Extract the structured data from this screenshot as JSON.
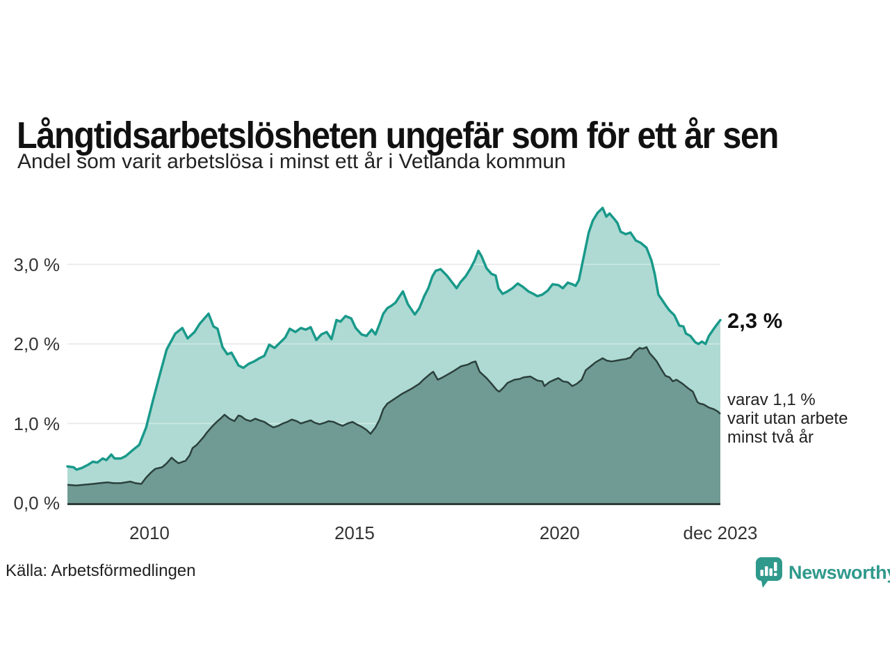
{
  "header": {
    "title": "Långtidsarbetslösheten ungefär som för ett år sen",
    "subtitle": "Andel som varit arbetslösa i minst ett år i Vetlanda kommun"
  },
  "chart_data": {
    "type": "area",
    "title": "Långtidsarbetslösheten ungefär som för ett år sen",
    "subtitle": "Andel som varit arbetslösa i minst ett år i Vetlanda kommun",
    "grid": true,
    "legend_position": "none",
    "x_axis": {
      "unit": "year",
      "range": [
        2008.0,
        2023.92
      ],
      "ticks": [
        {
          "label": "2010",
          "year": 2010
        },
        {
          "label": "2015",
          "year": 2015
        },
        {
          "label": "2020",
          "year": 2020
        },
        {
          "label": "dec 2023",
          "year": 2023.92
        }
      ]
    },
    "y_axis": {
      "unit": "%",
      "range": [
        0,
        3.8
      ],
      "ticks": [
        {
          "label": "0,0 %",
          "value": 0
        },
        {
          "label": "1,0 %",
          "value": 1
        },
        {
          "label": "2,0 %",
          "value": 2
        },
        {
          "label": "3,0 %",
          "value": 3
        }
      ]
    },
    "series": [
      {
        "name": "Andel som varit arbetslösa i minst ett år",
        "line_color": "#19998a",
        "fill_color": "#aedad3",
        "line_width": 3.5,
        "latest_value": 2.3,
        "points": [
          [
            2008.0,
            0.46
          ],
          [
            2008.15,
            0.45
          ],
          [
            2008.22,
            0.42
          ],
          [
            2008.35,
            0.44
          ],
          [
            2008.5,
            0.48
          ],
          [
            2008.62,
            0.52
          ],
          [
            2008.73,
            0.51
          ],
          [
            2008.86,
            0.56
          ],
          [
            2008.95,
            0.54
          ],
          [
            2009.07,
            0.61
          ],
          [
            2009.15,
            0.56
          ],
          [
            2009.3,
            0.56
          ],
          [
            2009.42,
            0.59
          ],
          [
            2009.58,
            0.66
          ],
          [
            2009.75,
            0.73
          ],
          [
            2009.92,
            0.95
          ],
          [
            2010.08,
            1.28
          ],
          [
            2010.25,
            1.61
          ],
          [
            2010.42,
            1.93
          ],
          [
            2010.63,
            2.13
          ],
          [
            2010.8,
            2.2
          ],
          [
            2010.93,
            2.07
          ],
          [
            2011.1,
            2.15
          ],
          [
            2011.22,
            2.25
          ],
          [
            2011.44,
            2.38
          ],
          [
            2011.56,
            2.22
          ],
          [
            2011.66,
            2.19
          ],
          [
            2011.78,
            1.96
          ],
          [
            2011.9,
            1.87
          ],
          [
            2012.0,
            1.89
          ],
          [
            2012.17,
            1.73
          ],
          [
            2012.29,
            1.7
          ],
          [
            2012.42,
            1.75
          ],
          [
            2012.55,
            1.78
          ],
          [
            2012.68,
            1.82
          ],
          [
            2012.8,
            1.85
          ],
          [
            2012.92,
            1.99
          ],
          [
            2013.05,
            1.95
          ],
          [
            2013.19,
            2.02
          ],
          [
            2013.31,
            2.08
          ],
          [
            2013.42,
            2.19
          ],
          [
            2013.56,
            2.15
          ],
          [
            2013.69,
            2.2
          ],
          [
            2013.81,
            2.18
          ],
          [
            2013.93,
            2.21
          ],
          [
            2014.07,
            2.05
          ],
          [
            2014.19,
            2.12
          ],
          [
            2014.32,
            2.15
          ],
          [
            2014.44,
            2.06
          ],
          [
            2014.56,
            2.3
          ],
          [
            2014.66,
            2.28
          ],
          [
            2014.78,
            2.35
          ],
          [
            2014.92,
            2.32
          ],
          [
            2015.03,
            2.2
          ],
          [
            2015.17,
            2.12
          ],
          [
            2015.29,
            2.1
          ],
          [
            2015.42,
            2.18
          ],
          [
            2015.51,
            2.12
          ],
          [
            2015.61,
            2.25
          ],
          [
            2015.7,
            2.38
          ],
          [
            2015.8,
            2.45
          ],
          [
            2015.9,
            2.48
          ],
          [
            2016.0,
            2.52
          ],
          [
            2016.1,
            2.6
          ],
          [
            2016.18,
            2.66
          ],
          [
            2016.3,
            2.5
          ],
          [
            2016.47,
            2.37
          ],
          [
            2016.58,
            2.45
          ],
          [
            2016.7,
            2.6
          ],
          [
            2016.8,
            2.7
          ],
          [
            2016.9,
            2.85
          ],
          [
            2016.98,
            2.92
          ],
          [
            2017.1,
            2.94
          ],
          [
            2017.25,
            2.86
          ],
          [
            2017.37,
            2.78
          ],
          [
            2017.49,
            2.7
          ],
          [
            2017.59,
            2.78
          ],
          [
            2017.71,
            2.85
          ],
          [
            2017.83,
            2.95
          ],
          [
            2017.93,
            3.05
          ],
          [
            2018.02,
            3.17
          ],
          [
            2018.1,
            3.1
          ],
          [
            2018.22,
            2.95
          ],
          [
            2018.34,
            2.88
          ],
          [
            2018.44,
            2.86
          ],
          [
            2018.51,
            2.7
          ],
          [
            2018.61,
            2.63
          ],
          [
            2018.73,
            2.66
          ],
          [
            2018.85,
            2.7
          ],
          [
            2018.98,
            2.76
          ],
          [
            2019.1,
            2.72
          ],
          [
            2019.24,
            2.66
          ],
          [
            2019.36,
            2.63
          ],
          [
            2019.46,
            2.6
          ],
          [
            2019.58,
            2.62
          ],
          [
            2019.71,
            2.67
          ],
          [
            2019.83,
            2.75
          ],
          [
            2019.97,
            2.74
          ],
          [
            2020.08,
            2.7
          ],
          [
            2020.2,
            2.77
          ],
          [
            2020.31,
            2.75
          ],
          [
            2020.39,
            2.73
          ],
          [
            2020.47,
            2.8
          ],
          [
            2020.59,
            3.1
          ],
          [
            2020.71,
            3.4
          ],
          [
            2020.81,
            3.55
          ],
          [
            2020.93,
            3.65
          ],
          [
            2021.05,
            3.71
          ],
          [
            2021.14,
            3.6
          ],
          [
            2021.22,
            3.64
          ],
          [
            2021.32,
            3.58
          ],
          [
            2021.41,
            3.52
          ],
          [
            2021.49,
            3.41
          ],
          [
            2021.61,
            3.38
          ],
          [
            2021.73,
            3.4
          ],
          [
            2021.86,
            3.3
          ],
          [
            2021.98,
            3.27
          ],
          [
            2022.12,
            3.21
          ],
          [
            2022.24,
            3.05
          ],
          [
            2022.32,
            2.88
          ],
          [
            2022.41,
            2.62
          ],
          [
            2022.49,
            2.56
          ],
          [
            2022.58,
            2.49
          ],
          [
            2022.68,
            2.42
          ],
          [
            2022.8,
            2.36
          ],
          [
            2022.92,
            2.23
          ],
          [
            2023.02,
            2.22
          ],
          [
            2023.08,
            2.13
          ],
          [
            2023.19,
            2.1
          ],
          [
            2023.31,
            2.02
          ],
          [
            2023.39,
            2.0
          ],
          [
            2023.47,
            2.03
          ],
          [
            2023.56,
            2.0
          ],
          [
            2023.64,
            2.1
          ],
          [
            2023.76,
            2.19
          ],
          [
            2023.86,
            2.26
          ],
          [
            2023.92,
            2.3
          ]
        ]
      },
      {
        "name": "varav utan arbete minst två år",
        "line_color": "#2c403c",
        "fill_color": "#6f9b94",
        "line_width": 2.5,
        "latest_value": 1.1,
        "points": [
          [
            2008.0,
            0.23
          ],
          [
            2008.22,
            0.22
          ],
          [
            2008.39,
            0.23
          ],
          [
            2008.62,
            0.24
          ],
          [
            2008.78,
            0.25
          ],
          [
            2008.98,
            0.26
          ],
          [
            2009.12,
            0.25
          ],
          [
            2009.3,
            0.25
          ],
          [
            2009.42,
            0.26
          ],
          [
            2009.53,
            0.27
          ],
          [
            2009.66,
            0.25
          ],
          [
            2009.8,
            0.24
          ],
          [
            2009.92,
            0.32
          ],
          [
            2010.03,
            0.38
          ],
          [
            2010.14,
            0.43
          ],
          [
            2010.31,
            0.45
          ],
          [
            2010.42,
            0.5
          ],
          [
            2010.54,
            0.57
          ],
          [
            2010.63,
            0.53
          ],
          [
            2010.71,
            0.5
          ],
          [
            2010.81,
            0.52
          ],
          [
            2010.88,
            0.53
          ],
          [
            2010.98,
            0.6
          ],
          [
            2011.05,
            0.69
          ],
          [
            2011.15,
            0.73
          ],
          [
            2011.22,
            0.77
          ],
          [
            2011.32,
            0.83
          ],
          [
            2011.39,
            0.88
          ],
          [
            2011.49,
            0.94
          ],
          [
            2011.56,
            0.98
          ],
          [
            2011.66,
            1.03
          ],
          [
            2011.73,
            1.06
          ],
          [
            2011.83,
            1.11
          ],
          [
            2011.95,
            1.06
          ],
          [
            2012.07,
            1.03
          ],
          [
            2012.17,
            1.1
          ],
          [
            2012.24,
            1.09
          ],
          [
            2012.34,
            1.05
          ],
          [
            2012.46,
            1.03
          ],
          [
            2012.58,
            1.06
          ],
          [
            2012.68,
            1.04
          ],
          [
            2012.8,
            1.02
          ],
          [
            2012.92,
            0.98
          ],
          [
            2013.02,
            0.95
          ],
          [
            2013.14,
            0.97
          ],
          [
            2013.25,
            1.0
          ],
          [
            2013.36,
            1.02
          ],
          [
            2013.47,
            1.05
          ],
          [
            2013.59,
            1.03
          ],
          [
            2013.69,
            1.0
          ],
          [
            2013.81,
            1.02
          ],
          [
            2013.93,
            1.04
          ],
          [
            2014.03,
            1.01
          ],
          [
            2014.15,
            0.99
          ],
          [
            2014.27,
            1.01
          ],
          [
            2014.37,
            1.03
          ],
          [
            2014.49,
            1.02
          ],
          [
            2014.61,
            0.99
          ],
          [
            2014.71,
            0.97
          ],
          [
            2014.83,
            1.0
          ],
          [
            2014.95,
            1.02
          ],
          [
            2015.05,
            0.99
          ],
          [
            2015.17,
            0.96
          ],
          [
            2015.29,
            0.92
          ],
          [
            2015.39,
            0.87
          ],
          [
            2015.51,
            0.95
          ],
          [
            2015.61,
            1.05
          ],
          [
            2015.7,
            1.18
          ],
          [
            2015.8,
            1.25
          ],
          [
            2015.95,
            1.3
          ],
          [
            2016.15,
            1.37
          ],
          [
            2016.4,
            1.44
          ],
          [
            2016.58,
            1.5
          ],
          [
            2016.7,
            1.56
          ],
          [
            2016.86,
            1.63
          ],
          [
            2016.92,
            1.65
          ],
          [
            2017.03,
            1.55
          ],
          [
            2017.15,
            1.58
          ],
          [
            2017.25,
            1.61
          ],
          [
            2017.42,
            1.66
          ],
          [
            2017.6,
            1.72
          ],
          [
            2017.76,
            1.74
          ],
          [
            2017.88,
            1.77
          ],
          [
            2017.95,
            1.78
          ],
          [
            2018.05,
            1.65
          ],
          [
            2018.22,
            1.57
          ],
          [
            2018.34,
            1.5
          ],
          [
            2018.47,
            1.42
          ],
          [
            2018.53,
            1.4
          ],
          [
            2018.63,
            1.45
          ],
          [
            2018.73,
            1.51
          ],
          [
            2018.9,
            1.55
          ],
          [
            2019.03,
            1.56
          ],
          [
            2019.12,
            1.58
          ],
          [
            2019.29,
            1.59
          ],
          [
            2019.46,
            1.54
          ],
          [
            2019.58,
            1.53
          ],
          [
            2019.63,
            1.47
          ],
          [
            2019.75,
            1.52
          ],
          [
            2019.83,
            1.54
          ],
          [
            2019.97,
            1.57
          ],
          [
            2020.08,
            1.53
          ],
          [
            2020.2,
            1.52
          ],
          [
            2020.31,
            1.47
          ],
          [
            2020.42,
            1.5
          ],
          [
            2020.54,
            1.55
          ],
          [
            2020.64,
            1.67
          ],
          [
            2020.76,
            1.72
          ],
          [
            2020.88,
            1.77
          ],
          [
            2020.98,
            1.8
          ],
          [
            2021.05,
            1.82
          ],
          [
            2021.15,
            1.79
          ],
          [
            2021.27,
            1.78
          ],
          [
            2021.39,
            1.79
          ],
          [
            2021.49,
            1.8
          ],
          [
            2021.61,
            1.81
          ],
          [
            2021.73,
            1.83
          ],
          [
            2021.83,
            1.9
          ],
          [
            2021.95,
            1.95
          ],
          [
            2022.03,
            1.94
          ],
          [
            2022.12,
            1.96
          ],
          [
            2022.2,
            1.88
          ],
          [
            2022.29,
            1.83
          ],
          [
            2022.37,
            1.78
          ],
          [
            2022.46,
            1.7
          ],
          [
            2022.58,
            1.6
          ],
          [
            2022.68,
            1.58
          ],
          [
            2022.76,
            1.53
          ],
          [
            2022.85,
            1.55
          ],
          [
            2023.0,
            1.5
          ],
          [
            2023.14,
            1.44
          ],
          [
            2023.25,
            1.4
          ],
          [
            2023.36,
            1.27
          ],
          [
            2023.42,
            1.25
          ],
          [
            2023.51,
            1.24
          ],
          [
            2023.64,
            1.2
          ],
          [
            2023.76,
            1.18
          ],
          [
            2023.86,
            1.15
          ],
          [
            2023.92,
            1.12
          ]
        ]
      }
    ],
    "annotations": {
      "total_label": "2,3 %",
      "sub_label": "varav 1,1 %\nvarit utan arbete\nminst två år"
    }
  },
  "colors": {
    "accent_line": "#19998a",
    "accent_fill": "#aedad3",
    "dark_fill": "#6f9b94",
    "dark_stroke": "#2c403c",
    "gridline": "#d9d9d9",
    "axis": "#2c3b38",
    "logo": "#2f998c"
  },
  "footer": {
    "source": "Källa: Arbetsförmedlingen",
    "logo_text": "Newsworthy"
  }
}
